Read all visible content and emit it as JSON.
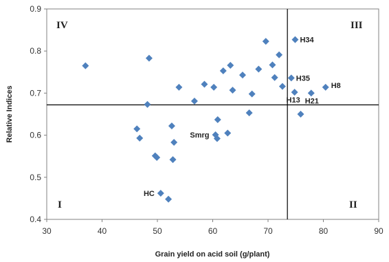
{
  "chart_data": {
    "type": "scatter",
    "title": "",
    "xlabel": "Grain yield on acid soil (g/plant)",
    "ylabel": "Relative Indices",
    "xlim": [
      30,
      90
    ],
    "ylim": [
      0.4,
      0.9
    ],
    "xticks": [
      "30",
      "40",
      "50",
      "60",
      "70",
      "80",
      "90"
    ],
    "yticks": [
      "0.4",
      "0.5",
      "0.6",
      "0.7",
      "0.8",
      "0.9"
    ],
    "grid": false,
    "marker_color": "#4f81bd",
    "reference_lines": {
      "x": 73.5,
      "y": 0.672
    },
    "quadrants": [
      "I",
      "II",
      "III",
      "IV"
    ],
    "points": [
      {
        "x": 37,
        "y": 0.765,
        "label": ""
      },
      {
        "x": 48.5,
        "y": 0.783,
        "label": ""
      },
      {
        "x": 48.2,
        "y": 0.673,
        "label": ""
      },
      {
        "x": 46.3,
        "y": 0.615,
        "label": ""
      },
      {
        "x": 46.8,
        "y": 0.593,
        "label": ""
      },
      {
        "x": 49.6,
        "y": 0.551,
        "label": ""
      },
      {
        "x": 49.9,
        "y": 0.547,
        "label": ""
      },
      {
        "x": 50.6,
        "y": 0.462,
        "label": "HC"
      },
      {
        "x": 52.0,
        "y": 0.448,
        "label": ""
      },
      {
        "x": 52.6,
        "y": 0.622,
        "label": ""
      },
      {
        "x": 53.0,
        "y": 0.583,
        "label": ""
      },
      {
        "x": 52.8,
        "y": 0.542,
        "label": ""
      },
      {
        "x": 53.9,
        "y": 0.714,
        "label": ""
      },
      {
        "x": 56.7,
        "y": 0.681,
        "label": ""
      },
      {
        "x": 58.5,
        "y": 0.721,
        "label": ""
      },
      {
        "x": 60.2,
        "y": 0.714,
        "label": ""
      },
      {
        "x": 60.5,
        "y": 0.601,
        "label": "Smrg"
      },
      {
        "x": 60.8,
        "y": 0.592,
        "label": ""
      },
      {
        "x": 60.9,
        "y": 0.637,
        "label": ""
      },
      {
        "x": 61.9,
        "y": 0.753,
        "label": ""
      },
      {
        "x": 62.7,
        "y": 0.605,
        "label": ""
      },
      {
        "x": 63.2,
        "y": 0.766,
        "label": ""
      },
      {
        "x": 63.6,
        "y": 0.707,
        "label": ""
      },
      {
        "x": 65.4,
        "y": 0.743,
        "label": ""
      },
      {
        "x": 66.6,
        "y": 0.653,
        "label": ""
      },
      {
        "x": 67.1,
        "y": 0.698,
        "label": ""
      },
      {
        "x": 68.3,
        "y": 0.757,
        "label": ""
      },
      {
        "x": 69.6,
        "y": 0.823,
        "label": ""
      },
      {
        "x": 70.8,
        "y": 0.767,
        "label": ""
      },
      {
        "x": 71.2,
        "y": 0.737,
        "label": ""
      },
      {
        "x": 72.0,
        "y": 0.791,
        "label": ""
      },
      {
        "x": 72.6,
        "y": 0.716,
        "label": ""
      },
      {
        "x": 74.2,
        "y": 0.736,
        "label": "H35"
      },
      {
        "x": 74.8,
        "y": 0.702,
        "label": "H13"
      },
      {
        "x": 74.9,
        "y": 0.827,
        "label": "H34"
      },
      {
        "x": 75.9,
        "y": 0.65,
        "label": ""
      },
      {
        "x": 77.8,
        "y": 0.7,
        "label": "H21"
      },
      {
        "x": 80.4,
        "y": 0.714,
        "label": "H8"
      }
    ]
  }
}
